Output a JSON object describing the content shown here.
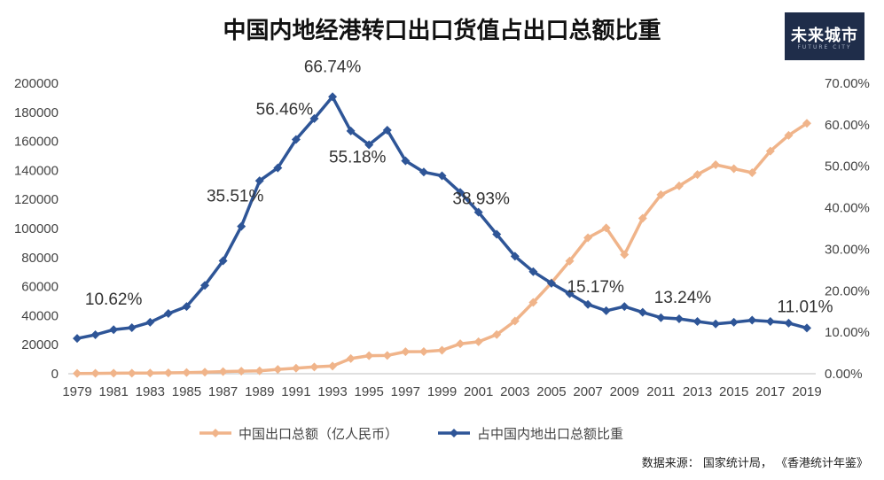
{
  "title": "中国内地经港转口出口货值占出口总额比重",
  "logo": {
    "text": "未来城市",
    "subtext": "FUTURE CITY"
  },
  "source": "数据来源： 国家统计局， 《香港统计年鉴》",
  "chart_data": {
    "type": "line",
    "x": [
      1979,
      1980,
      1981,
      1982,
      1983,
      1984,
      1985,
      1986,
      1987,
      1988,
      1989,
      1990,
      1991,
      1992,
      1993,
      1994,
      1995,
      1996,
      1997,
      1998,
      1999,
      2000,
      2001,
      2002,
      2003,
      2004,
      2005,
      2006,
      2007,
      2008,
      2009,
      2010,
      2011,
      2012,
      2013,
      2014,
      2015,
      2016,
      2017,
      2018,
      2019
    ],
    "x_tick_labels": [
      "1979",
      "1981",
      "1983",
      "1985",
      "1987",
      "1989",
      "1991",
      "1993",
      "1995",
      "1997",
      "1999",
      "2001",
      "2003",
      "2005",
      "2007",
      "2009",
      "2011",
      "2013",
      "2015",
      "2017",
      "2019"
    ],
    "y_left": {
      "min": 0,
      "max": 200000,
      "step": 20000,
      "tick_labels": [
        "0",
        "20000",
        "40000",
        "60000",
        "80000",
        "100000",
        "120000",
        "140000",
        "160000",
        "180000",
        "200000"
      ]
    },
    "y_right": {
      "min": 0,
      "max": 70,
      "step": 10,
      "tick_labels": [
        "0.00%",
        "10.00%",
        "20.00%",
        "30.00%",
        "40.00%",
        "50.00%",
        "60.00%",
        "70.00%"
      ]
    },
    "series": [
      {
        "name": "中国出口总额（亿人民币）",
        "axis": "left",
        "color": "#f0b48a",
        "values": [
          212,
          271,
          368,
          414,
          438,
          580,
          809,
          1082,
          1470,
          1767,
          1956,
          2986,
          3827,
          4676,
          5285,
          10422,
          12452,
          12576,
          15161,
          15224,
          16160,
          20634,
          22024,
          26948,
          36288,
          49103,
          62648,
          77598,
          93627,
          100395,
          82030,
          107023,
          123241,
          129359,
          137131,
          143884,
          141167,
          138419,
          153311,
          164128,
          172374
        ]
      },
      {
        "name": "占中国内地出口总额比重",
        "axis": "right",
        "color": "#2e5597",
        "values": [
          8.5,
          9.4,
          10.62,
          11.1,
          12.4,
          14.5,
          16.2,
          21.3,
          27.2,
          35.51,
          46.5,
          49.6,
          56.46,
          61.5,
          66.74,
          58.5,
          55.18,
          58.7,
          51.3,
          48.6,
          47.7,
          43.7,
          38.93,
          33.6,
          28.3,
          24.6,
          21.8,
          19.3,
          16.7,
          15.17,
          16.2,
          14.8,
          13.5,
          13.24,
          12.6,
          12.0,
          12.4,
          12.9,
          12.6,
          12.2,
          11.01
        ]
      }
    ],
    "annotations": [
      {
        "text": "10.62%",
        "x": 1981
      },
      {
        "text": "35.51%",
        "x": 1988
      },
      {
        "text": "56.46%",
        "x": 1991
      },
      {
        "text": "66.74%",
        "x": 1993
      },
      {
        "text": "55.18%",
        "x": 1995
      },
      {
        "text": "38.93%",
        "x": 2001
      },
      {
        "text": "15.17%",
        "x": 2008
      },
      {
        "text": "13.24%",
        "x": 2012
      },
      {
        "text": "11.01%",
        "x": 2019
      }
    ],
    "legend_position": "bottom"
  }
}
